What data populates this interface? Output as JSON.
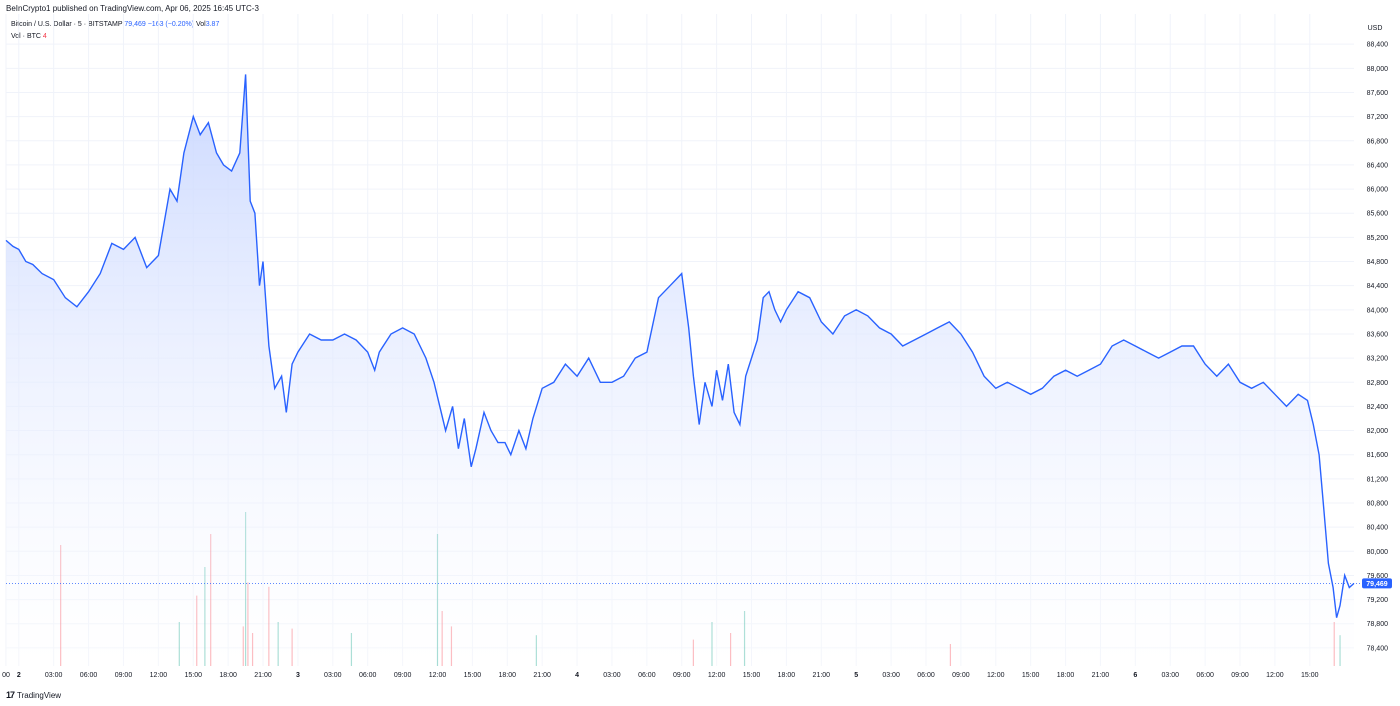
{
  "header": {
    "published_text": "BeInCrypto1 published on TradingView.com, Apr 06, 2025 16:45 UTC-3"
  },
  "legend": {
    "symbol": "Bitcoin / U.S. Dollar · 5 · BITSTAMP",
    "last_price": "79,469",
    "change": "−163 (−0.20%)",
    "vol_label": "Vol",
    "vol_value": "3.87",
    "vol_series": "Vol · BTC",
    "vol_series_value": "4"
  },
  "footer": {
    "brand": "TradingView",
    "logo": "17"
  },
  "colors": {
    "line": "#2962ff",
    "area_top": "#c8d6ff",
    "area_bottom": "#ffffff",
    "vol_up": "#22ab94",
    "vol_down": "#f7525f",
    "price_tag": "#2962ff",
    "grid": "#f0f3fa"
  },
  "chart_data": {
    "type": "area",
    "title": "Bitcoin / U.S. Dollar · 5 · BITSTAMP",
    "currency": "USD",
    "ylim": [
      78100,
      88900
    ],
    "y_ticks": [
      78400,
      78800,
      79200,
      79600,
      80000,
      80400,
      80800,
      81200,
      81600,
      82000,
      82400,
      82800,
      83200,
      83600,
      84000,
      84400,
      84800,
      85200,
      85600,
      86000,
      86400,
      86800,
      87200,
      87600,
      88000,
      88400
    ],
    "y_tick_labels": [
      "78,400",
      "78,800",
      "79,200",
      "79,600",
      "80,000",
      "80,400",
      "80,800",
      "81,200",
      "81,600",
      "82,000",
      "82,400",
      "82,800",
      "83,200",
      "83,600",
      "84,000",
      "84,400",
      "84,800",
      "85,200",
      "85,600",
      "86,000",
      "86,400",
      "86,800",
      "87,200",
      "87,600",
      "88,000",
      "88,400"
    ],
    "x_unit": "hours since Apr 2 00:00",
    "xlim": [
      -1.1,
      114.8
    ],
    "x_ticks": [
      -1,
      2,
      6,
      9,
      12,
      15,
      18,
      21,
      24,
      27,
      30,
      33,
      36,
      39,
      42,
      45,
      48,
      51,
      54,
      57,
      60,
      63,
      66,
      69,
      72,
      75,
      78,
      81,
      84,
      87,
      90,
      93,
      96,
      99,
      102,
      105,
      108,
      111,
      114
    ],
    "x_tick_labels_raw": [
      "00",
      "2",
      "03:00",
      "06:00",
      "09:00",
      "12:00",
      "15:00",
      "18:00",
      "21:00",
      "3",
      "03:00",
      "06:00",
      "09:00",
      "12:00",
      "15:00",
      "18:00",
      "21:00",
      "4",
      "03:00",
      "06:00",
      "09:00",
      "12:00",
      "15:00",
      "18:00",
      "21:00",
      "5",
      "03:00",
      "06:00",
      "09:00",
      "12:00",
      "15:00",
      "18:00",
      "21:00",
      "6",
      "03:00",
      "06:00",
      "09:00",
      "12:00",
      "15:00"
    ],
    "x_tick_positions_hours": [
      -1.1,
      0,
      3,
      6,
      9,
      12,
      15,
      18,
      21,
      24,
      27,
      30,
      33,
      36,
      39,
      42,
      45,
      48,
      51,
      54,
      57,
      60,
      63,
      66,
      69,
      72,
      75,
      78,
      81,
      84,
      87,
      90,
      93,
      96,
      99,
      102,
      105,
      108,
      111
    ],
    "series": [
      {
        "points": [
          [
            -1.1,
            85150
          ],
          [
            -0.5,
            85050
          ],
          [
            0,
            85000
          ],
          [
            0.6,
            84800
          ],
          [
            1.2,
            84750
          ],
          [
            2,
            84600
          ],
          [
            3,
            84500
          ],
          [
            4,
            84200
          ],
          [
            5,
            84050
          ],
          [
            6,
            84300
          ],
          [
            7,
            84600
          ],
          [
            8,
            85100
          ],
          [
            9,
            85000
          ],
          [
            10,
            85200
          ],
          [
            11,
            84700
          ],
          [
            12,
            84900
          ],
          [
            13,
            86000
          ],
          [
            13.6,
            85800
          ],
          [
            14.2,
            86600
          ],
          [
            15,
            87200
          ],
          [
            15.6,
            86900
          ],
          [
            16.3,
            87100
          ],
          [
            17,
            86600
          ],
          [
            17.6,
            86400
          ],
          [
            18.3,
            86300
          ],
          [
            19,
            86600
          ],
          [
            19.5,
            87900
          ],
          [
            19.9,
            85800
          ],
          [
            20.3,
            85600
          ],
          [
            20.7,
            84400
          ],
          [
            21,
            84800
          ],
          [
            21.5,
            83400
          ],
          [
            22,
            82700
          ],
          [
            22.6,
            82900
          ],
          [
            23,
            82300
          ],
          [
            23.5,
            83100
          ],
          [
            24,
            83300
          ],
          [
            25,
            83600
          ],
          [
            26,
            83500
          ],
          [
            27,
            83500
          ],
          [
            28,
            83600
          ],
          [
            29,
            83500
          ],
          [
            30,
            83300
          ],
          [
            30.6,
            83000
          ],
          [
            31,
            83300
          ],
          [
            32,
            83600
          ],
          [
            33,
            83700
          ],
          [
            34,
            83600
          ],
          [
            35,
            83200
          ],
          [
            35.7,
            82800
          ],
          [
            36.2,
            82400
          ],
          [
            36.7,
            82000
          ],
          [
            37.3,
            82400
          ],
          [
            37.8,
            81700
          ],
          [
            38.3,
            82200
          ],
          [
            38.9,
            81400
          ],
          [
            39.3,
            81700
          ],
          [
            40,
            82300
          ],
          [
            40.6,
            82000
          ],
          [
            41.2,
            81800
          ],
          [
            41.8,
            81800
          ],
          [
            42.3,
            81600
          ],
          [
            43,
            82000
          ],
          [
            43.6,
            81700
          ],
          [
            44.2,
            82200
          ],
          [
            45,
            82700
          ],
          [
            46,
            82800
          ],
          [
            47,
            83100
          ],
          [
            48,
            82900
          ],
          [
            49,
            83200
          ],
          [
            50,
            82800
          ],
          [
            51,
            82800
          ],
          [
            52,
            82900
          ],
          [
            53,
            83200
          ],
          [
            54,
            83300
          ],
          [
            55,
            84200
          ],
          [
            56,
            84400
          ],
          [
            57,
            84600
          ],
          [
            57.6,
            83700
          ],
          [
            58,
            82900
          ],
          [
            58.5,
            82100
          ],
          [
            59,
            82800
          ],
          [
            59.6,
            82400
          ],
          [
            60,
            83000
          ],
          [
            60.5,
            82500
          ],
          [
            61,
            83100
          ],
          [
            61.5,
            82300
          ],
          [
            62,
            82100
          ],
          [
            62.5,
            82900
          ],
          [
            63,
            83200
          ],
          [
            63.5,
            83500
          ],
          [
            64,
            84200
          ],
          [
            64.5,
            84300
          ],
          [
            65,
            84000
          ],
          [
            65.5,
            83800
          ],
          [
            66,
            84000
          ],
          [
            67,
            84300
          ],
          [
            68,
            84200
          ],
          [
            69,
            83800
          ],
          [
            70,
            83600
          ],
          [
            71,
            83900
          ],
          [
            72,
            84000
          ],
          [
            73,
            83900
          ],
          [
            74,
            83700
          ],
          [
            75,
            83600
          ],
          [
            76,
            83400
          ],
          [
            77,
            83500
          ],
          [
            78,
            83600
          ],
          [
            79,
            83700
          ],
          [
            80,
            83800
          ],
          [
            81,
            83600
          ],
          [
            82,
            83300
          ],
          [
            83,
            82900
          ],
          [
            84,
            82700
          ],
          [
            85,
            82800
          ],
          [
            86,
            82700
          ],
          [
            87,
            82600
          ],
          [
            88,
            82700
          ],
          [
            89,
            82900
          ],
          [
            90,
            83000
          ],
          [
            91,
            82900
          ],
          [
            92,
            83000
          ],
          [
            93,
            83100
          ],
          [
            94,
            83400
          ],
          [
            95,
            83500
          ],
          [
            96,
            83400
          ],
          [
            97,
            83300
          ],
          [
            98,
            83200
          ],
          [
            99,
            83300
          ],
          [
            100,
            83400
          ],
          [
            101,
            83400
          ],
          [
            102,
            83100
          ],
          [
            103,
            82900
          ],
          [
            104,
            83100
          ],
          [
            105,
            82800
          ],
          [
            106,
            82700
          ],
          [
            107,
            82800
          ],
          [
            108,
            82600
          ],
          [
            109,
            82400
          ],
          [
            110,
            82600
          ],
          [
            110.8,
            82500
          ],
          [
            111.3,
            82100
          ],
          [
            111.8,
            81600
          ],
          [
            112.2,
            80700
          ],
          [
            112.6,
            79800
          ],
          [
            113,
            79400
          ],
          [
            113.3,
            78900
          ],
          [
            113.6,
            79100
          ],
          [
            114,
            79600
          ],
          [
            114.4,
            79400
          ],
          [
            114.8,
            79469
          ]
        ]
      }
    ],
    "last_value": 79469,
    "last_value_label": "79,469",
    "volume": {
      "unit": "BTC",
      "bars": [
        {
          "x": 3.6,
          "v": 55,
          "dir": "down"
        },
        {
          "x": 13.8,
          "v": 20,
          "dir": "up"
        },
        {
          "x": 15.3,
          "v": 32,
          "dir": "down"
        },
        {
          "x": 16,
          "v": 45,
          "dir": "up"
        },
        {
          "x": 16.5,
          "v": 60,
          "dir": "down"
        },
        {
          "x": 19.3,
          "v": 18,
          "dir": "down"
        },
        {
          "x": 19.5,
          "v": 70,
          "dir": "up"
        },
        {
          "x": 19.7,
          "v": 38,
          "dir": "down"
        },
        {
          "x": 20.1,
          "v": 15,
          "dir": "down"
        },
        {
          "x": 21.5,
          "v": 36,
          "dir": "down"
        },
        {
          "x": 22.3,
          "v": 20,
          "dir": "up"
        },
        {
          "x": 23.5,
          "v": 17,
          "dir": "down"
        },
        {
          "x": 28.6,
          "v": 15,
          "dir": "up"
        },
        {
          "x": 36,
          "v": 60,
          "dir": "up"
        },
        {
          "x": 36.4,
          "v": 25,
          "dir": "down"
        },
        {
          "x": 37.2,
          "v": 18,
          "dir": "down"
        },
        {
          "x": 44.5,
          "v": 14,
          "dir": "up"
        },
        {
          "x": 58,
          "v": 12,
          "dir": "down"
        },
        {
          "x": 59.6,
          "v": 20,
          "dir": "up"
        },
        {
          "x": 61.2,
          "v": 15,
          "dir": "down"
        },
        {
          "x": 62.4,
          "v": 25,
          "dir": "up"
        },
        {
          "x": 80.1,
          "v": 10,
          "dir": "down"
        },
        {
          "x": 113.1,
          "v": 20,
          "dir": "down"
        },
        {
          "x": 113.6,
          "v": 14,
          "dir": "up"
        }
      ]
    },
    "grid": true,
    "legend": "top-left"
  }
}
